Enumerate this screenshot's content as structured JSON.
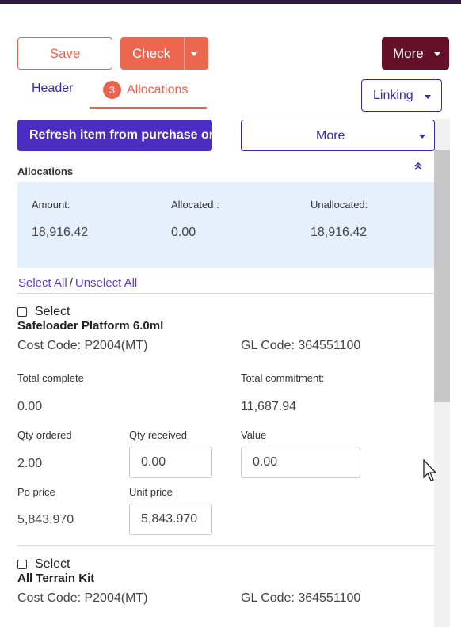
{
  "toolbar": {
    "save_label": "Save",
    "check_label": "Check",
    "more_label": "More",
    "linking_label": "Linking"
  },
  "tabs": {
    "header_label": "Header",
    "allocations_label": "Allocations",
    "allocations_count": "3"
  },
  "actions": {
    "refresh_label": "Refresh item from purchase or",
    "more_label": "More"
  },
  "allocations": {
    "title": "Allocations",
    "amount_label": "Amount:",
    "amount_value": "18,916.42",
    "allocated_label": "Allocated :",
    "allocated_value": "0.00",
    "unallocated_label": "Unallocated:",
    "unallocated_value": "18,916.42"
  },
  "selection": {
    "select_all": "Select All",
    "separator": "/",
    "unselect_all": "Unselect All"
  },
  "items": [
    {
      "select_label": "Select",
      "name": "Safeloader Platform 6.0ml",
      "cost_code": "Cost Code: P2004(MT)",
      "gl_code": "GL Code: 364551100",
      "total_complete_label": "Total complete",
      "total_complete_value": "0.00",
      "total_commitment_label": "Total commitment:",
      "total_commitment_value": "11,687.94",
      "qty_ordered_label": "Qty ordered",
      "qty_ordered_value": "2.00",
      "qty_received_label": "Qty received",
      "qty_received_value": "0.00",
      "value_label": "Value",
      "value_value": "0.00",
      "po_price_label": "Po price",
      "po_price_value": "5,843.970",
      "unit_price_label": "Unit price",
      "unit_price_value": "5,843.970"
    },
    {
      "select_label": "Select",
      "name": "All Terrain Kit",
      "cost_code": "Cost Code: P2004(MT)",
      "gl_code": "GL Code: 364551100"
    }
  ],
  "colors": {
    "accent_orange": "#e8644f",
    "primary_purple": "#4b2dc2",
    "dark_maroon": "#64102a",
    "summary_bg": "#e5f0fd"
  },
  "icons": [
    "chevron-down-icon",
    "double-chevron-up-icon",
    "mouse-pointer-icon"
  ]
}
